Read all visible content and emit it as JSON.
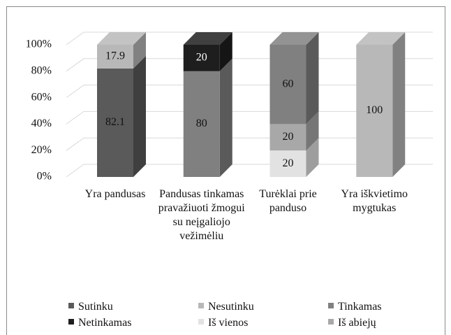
{
  "chart_data": {
    "type": "bar3d_stacked",
    "categories": [
      "Yra pandusas",
      "Pandusas tinkamas pravažiuoti žmogui su neįgaliojo vežimėliu",
      "Turėklai prie panduso",
      "Yra iškvietimo mygtukas"
    ],
    "series": [
      {
        "name": "Sutinku",
        "color": "#5a5a5a",
        "values": [
          82.1,
          null,
          null,
          null
        ]
      },
      {
        "name": "Nesutinku",
        "color": "#b8b8b8",
        "values": [
          17.9,
          null,
          null,
          100
        ]
      },
      {
        "name": "Tinkamas",
        "color": "#808080",
        "values": [
          null,
          80,
          60,
          null
        ]
      },
      {
        "name": "Netinkamas",
        "color": "#1e1e1e",
        "values": [
          null,
          20,
          null,
          null
        ]
      },
      {
        "name": "Iš vienos",
        "color": "#e2e2e2",
        "values": [
          null,
          null,
          20,
          null
        ]
      },
      {
        "name": "Iš abiejų",
        "color": "#a8a8a8",
        "values": [
          null,
          null,
          20,
          null
        ]
      }
    ],
    "ylim": [
      0,
      100
    ],
    "yticks": [
      {
        "value": 0,
        "label": "0%"
      },
      {
        "value": 20,
        "label": "20%"
      },
      {
        "value": 40,
        "label": "40%"
      },
      {
        "value": 60,
        "label": "60%"
      },
      {
        "value": 80,
        "label": "80%"
      },
      {
        "value": 100,
        "label": "100%"
      }
    ],
    "grid": true
  }
}
